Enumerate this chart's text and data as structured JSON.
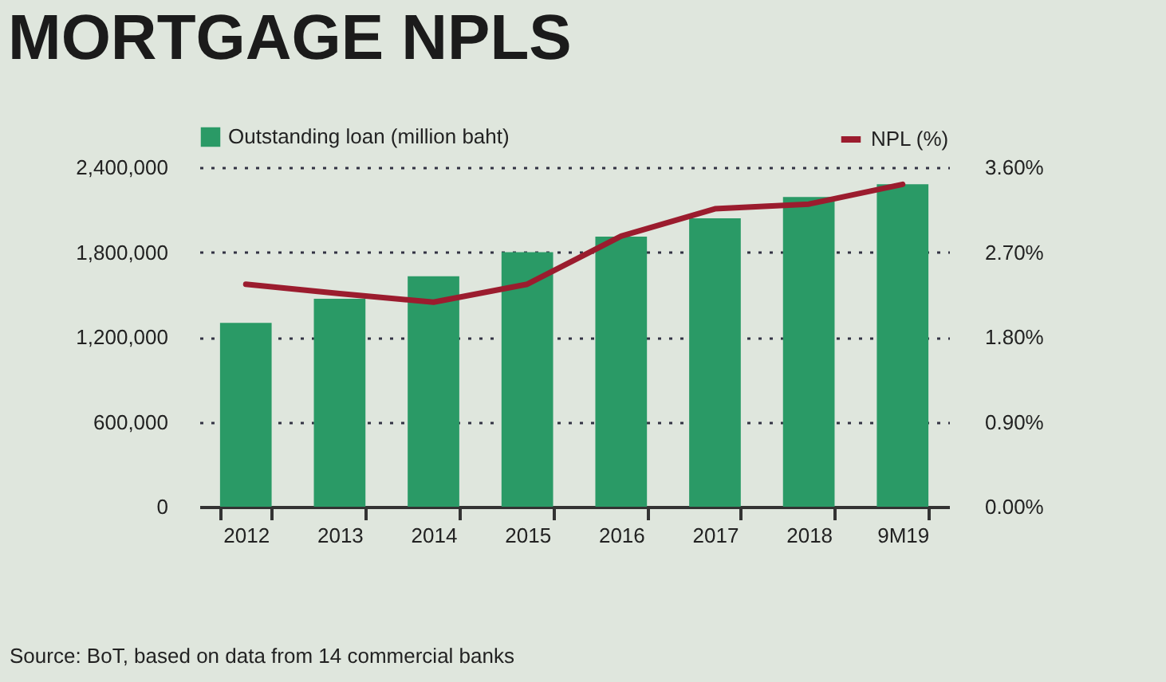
{
  "chart_data": {
    "type": "bar",
    "title": "MORTGAGE NPLS",
    "categories": [
      "2012",
      "2013",
      "2014",
      "2015",
      "2016",
      "2017",
      "2018",
      "9M19"
    ],
    "series": [
      {
        "name": "Outstanding loan (million baht)",
        "color": "#2a9a66",
        "values": [
          1300000,
          1470000,
          1630000,
          1800000,
          1910000,
          2040000,
          2190000,
          2280000
        ]
      },
      {
        "name": "NPL (%)",
        "type": "line",
        "axis": "y2",
        "color": "#9b1c2e",
        "values": [
          2.36,
          2.26,
          2.17,
          2.36,
          2.87,
          3.16,
          3.21,
          3.42
        ]
      }
    ],
    "ylim": [
      0,
      2400000
    ],
    "yticks": [
      {
        "value": 0,
        "label": "0"
      },
      {
        "value": 600000,
        "label": "600,000"
      },
      {
        "value": 1200000,
        "label": "1,200,000"
      },
      {
        "value": 1800000,
        "label": "1,800,000"
      },
      {
        "value": 2400000,
        "label": "2,400,000"
      }
    ],
    "y2lim": [
      0,
      3.6
    ],
    "y2ticks": [
      {
        "value": 0,
        "label": "0.00%"
      },
      {
        "value": 0.9,
        "label": "0.90%"
      },
      {
        "value": 1.8,
        "label": "1.80%"
      },
      {
        "value": 2.7,
        "label": "2.70%"
      },
      {
        "value": 3.6,
        "label": "3.60%"
      }
    ],
    "grid": "y",
    "legend": "top",
    "line_style": "solid",
    "marker": "none",
    "annotations": [
      "Source: BoT, based on data from 14 commercial banks"
    ]
  }
}
